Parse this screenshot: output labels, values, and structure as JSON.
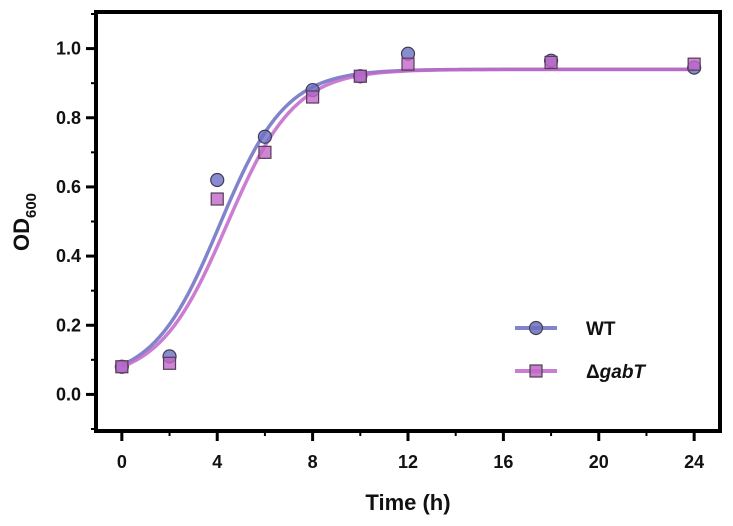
{
  "chart_data": {
    "type": "line",
    "xlabel": "Time (h)",
    "ylabel_main": "OD",
    "ylabel_sub": "600",
    "xlim": [
      -1,
      25
    ],
    "ylim": [
      -0.1,
      1.1
    ],
    "xticks": [
      0,
      4,
      8,
      12,
      16,
      20,
      24
    ],
    "yticks": [
      0.0,
      0.2,
      0.4,
      0.6,
      0.8,
      1.0
    ],
    "grid": false,
    "legend_position": "bottom-right",
    "series": [
      {
        "name": "WT",
        "marker": "circle",
        "color": "#6b6fc2",
        "points": [
          {
            "x": 0,
            "y": 0.08
          },
          {
            "x": 2,
            "y": 0.11
          },
          {
            "x": 4,
            "y": 0.62
          },
          {
            "x": 6,
            "y": 0.745
          },
          {
            "x": 8,
            "y": 0.88
          },
          {
            "x": 10,
            "y": 0.92
          },
          {
            "x": 12,
            "y": 0.985
          },
          {
            "x": 18,
            "y": 0.965
          },
          {
            "x": 24,
            "y": 0.945
          }
        ],
        "fit": {
          "top": 0.94,
          "bottom": 0.04,
          "x50": 4.1,
          "rate": 0.72
        }
      },
      {
        "name_prefix": "Δ",
        "name_italic": "gabT",
        "marker": "square",
        "color": "#c266c9",
        "points": [
          {
            "x": 0,
            "y": 0.08
          },
          {
            "x": 2,
            "y": 0.09
          },
          {
            "x": 4,
            "y": 0.565
          },
          {
            "x": 6,
            "y": 0.7
          },
          {
            "x": 8,
            "y": 0.86
          },
          {
            "x": 10,
            "y": 0.92
          },
          {
            "x": 12,
            "y": 0.955
          },
          {
            "x": 18,
            "y": 0.96
          },
          {
            "x": 24,
            "y": 0.955
          }
        ],
        "fit": {
          "top": 0.94,
          "bottom": 0.04,
          "x50": 4.4,
          "rate": 0.7
        }
      }
    ]
  }
}
